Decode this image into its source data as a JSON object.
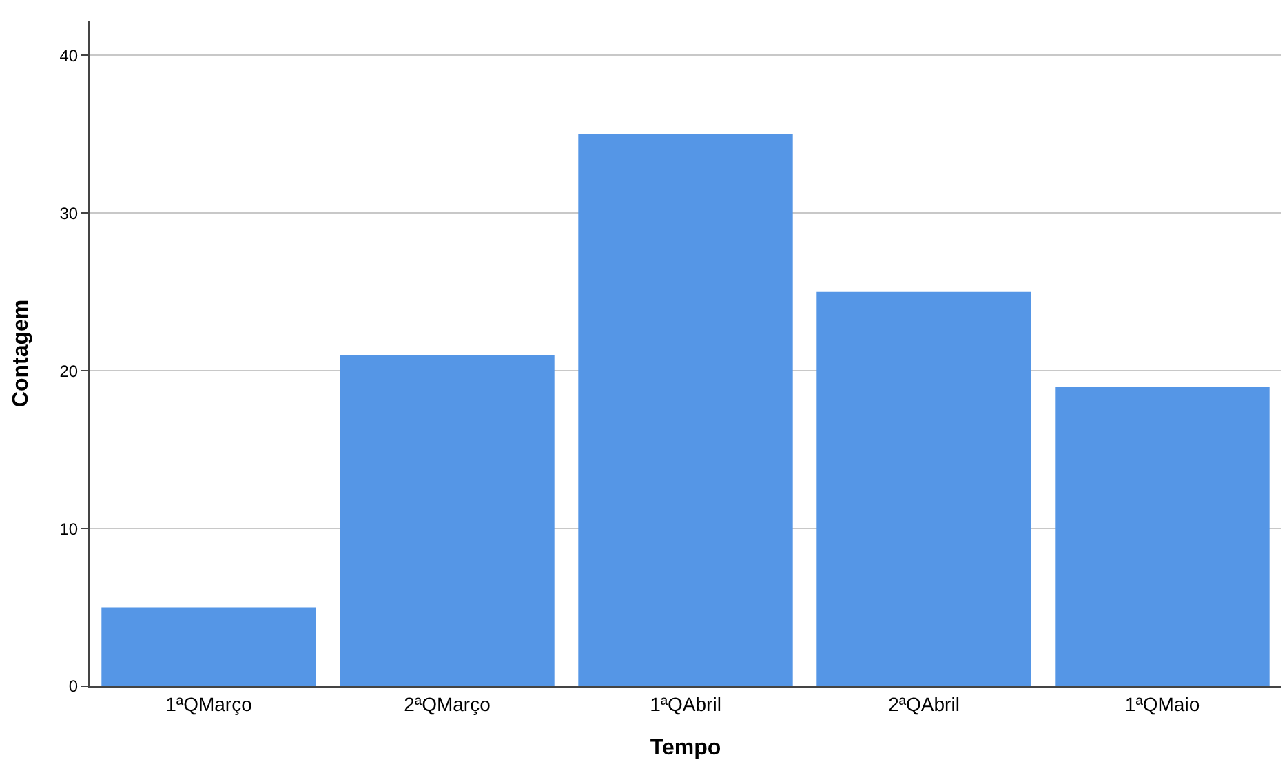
{
  "chart_data": {
    "type": "bar",
    "xlabel": "Tempo",
    "ylabel": "Contagem",
    "categories": [
      "1ªQMarço",
      "2ªQMarço",
      "1ªQAbril",
      "2ªQAbril",
      "1ªQMaio"
    ],
    "values": [
      5,
      21,
      35,
      25,
      19
    ],
    "color": "#5596e6",
    "ylim": [
      0,
      42.2
    ],
    "yticks": [
      0,
      10,
      20,
      30,
      40
    ],
    "grid": "y"
  }
}
